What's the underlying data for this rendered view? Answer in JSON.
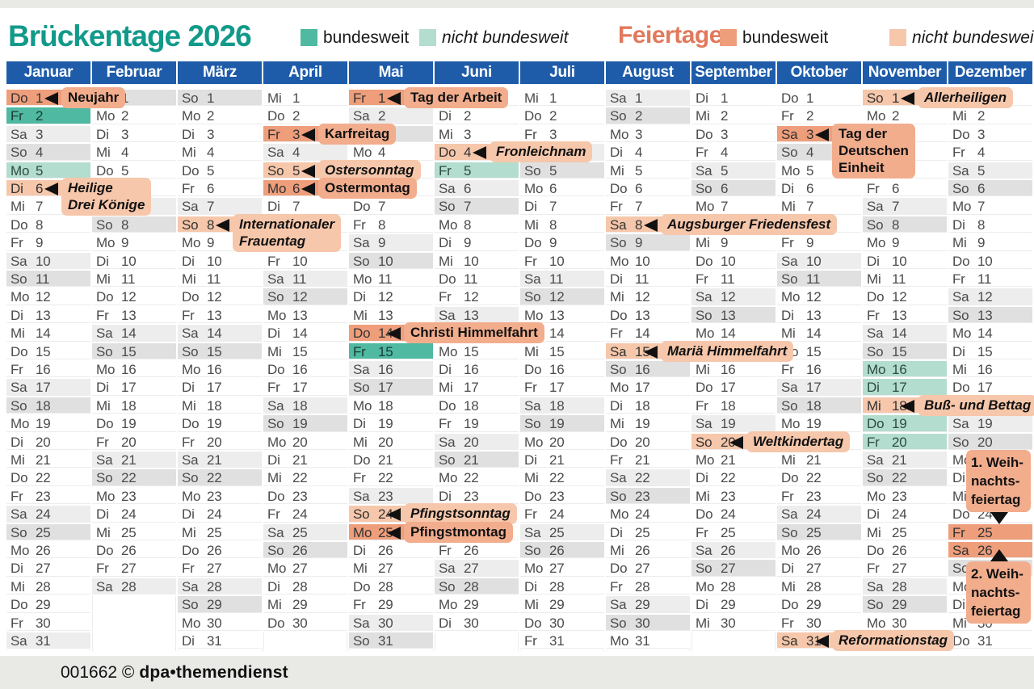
{
  "header": {
    "title": "Brückentage 2026",
    "feiertage_title": "Feiertage",
    "legend_bridge": {
      "national": "bundesweit",
      "regional": "nicht bundesweit"
    },
    "legend_holiday": {
      "national": "bundesweit",
      "regional": "nicht bundesweit"
    }
  },
  "footer": {
    "code": "001662 ©",
    "brand": "dpa•themendienst"
  },
  "colors": {
    "title": "#119a8a",
    "feiertage_title": "#e1795b",
    "month_header_bg": "#1e5caa",
    "holiday_national_cell": "#ee9e7b",
    "holiday_national_label": "#f2ad8d",
    "holiday_regional": "#f6c7ab",
    "bridge_national": "#4fb9a1",
    "bridge_regional": "#b3ddce",
    "saturday": "#ededed",
    "sunday": "#e0e0e0"
  },
  "calendar": {
    "weekdays": [
      "Mo",
      "Di",
      "Mi",
      "Do",
      "Fr",
      "Sa",
      "So"
    ],
    "months": [
      {
        "name": "Januar",
        "days": 31,
        "start": 3
      },
      {
        "name": "Februar",
        "days": 28,
        "start": 6
      },
      {
        "name": "März",
        "days": 31,
        "start": 6
      },
      {
        "name": "April",
        "days": 30,
        "start": 2
      },
      {
        "name": "Mai",
        "days": 31,
        "start": 4
      },
      {
        "name": "Juni",
        "days": 30,
        "start": 0
      },
      {
        "name": "Juli",
        "days": 31,
        "start": 2
      },
      {
        "name": "August",
        "days": 31,
        "start": 5
      },
      {
        "name": "September",
        "days": 30,
        "start": 1
      },
      {
        "name": "Oktober",
        "days": 31,
        "start": 3
      },
      {
        "name": "November",
        "days": 30,
        "start": 6
      },
      {
        "name": "Dezember",
        "days": 31,
        "start": 1
      }
    ],
    "marks": [
      {
        "m": 1,
        "d": 1,
        "t": "holiday_national"
      },
      {
        "m": 1,
        "d": 2,
        "t": "bridge_national"
      },
      {
        "m": 1,
        "d": 5,
        "t": "bridge_regional"
      },
      {
        "m": 1,
        "d": 6,
        "t": "holiday_regional"
      },
      {
        "m": 3,
        "d": 8,
        "t": "holiday_regional"
      },
      {
        "m": 4,
        "d": 3,
        "t": "holiday_national"
      },
      {
        "m": 4,
        "d": 5,
        "t": "holiday_regional"
      },
      {
        "m": 4,
        "d": 6,
        "t": "holiday_national"
      },
      {
        "m": 5,
        "d": 1,
        "t": "holiday_national"
      },
      {
        "m": 5,
        "d": 14,
        "t": "holiday_national"
      },
      {
        "m": 5,
        "d": 15,
        "t": "bridge_national"
      },
      {
        "m": 5,
        "d": 24,
        "t": "holiday_regional"
      },
      {
        "m": 5,
        "d": 25,
        "t": "holiday_national"
      },
      {
        "m": 6,
        "d": 4,
        "t": "holiday_regional"
      },
      {
        "m": 6,
        "d": 5,
        "t": "bridge_regional"
      },
      {
        "m": 8,
        "d": 8,
        "t": "holiday_regional"
      },
      {
        "m": 8,
        "d": 15,
        "t": "holiday_regional"
      },
      {
        "m": 9,
        "d": 20,
        "t": "holiday_regional"
      },
      {
        "m": 10,
        "d": 3,
        "t": "holiday_national"
      },
      {
        "m": 10,
        "d": 31,
        "t": "holiday_regional"
      },
      {
        "m": 11,
        "d": 1,
        "t": "holiday_regional"
      },
      {
        "m": 11,
        "d": 16,
        "t": "bridge_regional"
      },
      {
        "m": 11,
        "d": 17,
        "t": "bridge_regional"
      },
      {
        "m": 11,
        "d": 18,
        "t": "holiday_regional"
      },
      {
        "m": 11,
        "d": 19,
        "t": "bridge_regional"
      },
      {
        "m": 11,
        "d": 20,
        "t": "bridge_regional"
      },
      {
        "m": 12,
        "d": 25,
        "t": "holiday_national"
      },
      {
        "m": 12,
        "d": 26,
        "t": "holiday_national"
      }
    ],
    "labels": [
      {
        "m": 1,
        "d": 1,
        "lines": [
          "Neujahr"
        ],
        "italic": false,
        "light": false,
        "placement": "right"
      },
      {
        "m": 1,
        "d": 6,
        "lines": [
          "Heilige",
          "Drei Könige"
        ],
        "italic": true,
        "light": true,
        "placement": "right"
      },
      {
        "m": 3,
        "d": 8,
        "lines": [
          "Internationaler",
          "Frauentag"
        ],
        "italic": true,
        "light": true,
        "placement": "right"
      },
      {
        "m": 4,
        "d": 3,
        "lines": [
          "Karfreitag"
        ],
        "italic": false,
        "light": false,
        "placement": "right"
      },
      {
        "m": 4,
        "d": 5,
        "lines": [
          "Ostersonntag"
        ],
        "italic": true,
        "light": true,
        "placement": "right"
      },
      {
        "m": 4,
        "d": 6,
        "lines": [
          "Ostermontag"
        ],
        "italic": false,
        "light": false,
        "placement": "right"
      },
      {
        "m": 5,
        "d": 1,
        "lines": [
          "Tag der Arbeit"
        ],
        "italic": false,
        "light": false,
        "placement": "right"
      },
      {
        "m": 5,
        "d": 14,
        "lines": [
          "Christi Himmelfahrt"
        ],
        "italic": false,
        "light": false,
        "placement": "right"
      },
      {
        "m": 5,
        "d": 24,
        "lines": [
          "Pfingstsonntag"
        ],
        "italic": true,
        "light": true,
        "placement": "right"
      },
      {
        "m": 5,
        "d": 25,
        "lines": [
          "Pfingstmontag"
        ],
        "italic": false,
        "light": false,
        "placement": "right"
      },
      {
        "m": 6,
        "d": 4,
        "lines": [
          "Fronleichnam"
        ],
        "italic": true,
        "light": true,
        "placement": "right"
      },
      {
        "m": 8,
        "d": 8,
        "lines": [
          "Augsburger Friedensfest"
        ],
        "italic": true,
        "light": true,
        "placement": "right"
      },
      {
        "m": 8,
        "d": 15,
        "lines": [
          "Mariä Himmelfahrt"
        ],
        "italic": true,
        "light": true,
        "placement": "right"
      },
      {
        "m": 9,
        "d": 20,
        "lines": [
          "Weltkindertag"
        ],
        "italic": true,
        "light": true,
        "placement": "right"
      },
      {
        "m": 10,
        "d": 3,
        "lines": [
          "Tag der",
          "Deutschen",
          "Einheit"
        ],
        "italic": false,
        "light": false,
        "placement": "right"
      },
      {
        "m": 10,
        "d": 31,
        "lines": [
          "Reformationstag"
        ],
        "italic": true,
        "light": true,
        "placement": "right"
      },
      {
        "m": 11,
        "d": 1,
        "lines": [
          "Allerheiligen"
        ],
        "italic": true,
        "light": true,
        "placement": "right"
      },
      {
        "m": 11,
        "d": 18,
        "lines": [
          "Buß- und Bettag"
        ],
        "italic": true,
        "light": true,
        "placement": "right"
      },
      {
        "m": 12,
        "d": 25,
        "lines": [
          "1. Weih-",
          "nachts-",
          "feiertag"
        ],
        "italic": false,
        "light": false,
        "placement": "above"
      },
      {
        "m": 12,
        "d": 26,
        "lines": [
          "2. Weih-",
          "nachts-",
          "feiertag"
        ],
        "italic": false,
        "light": false,
        "placement": "below"
      }
    ]
  }
}
